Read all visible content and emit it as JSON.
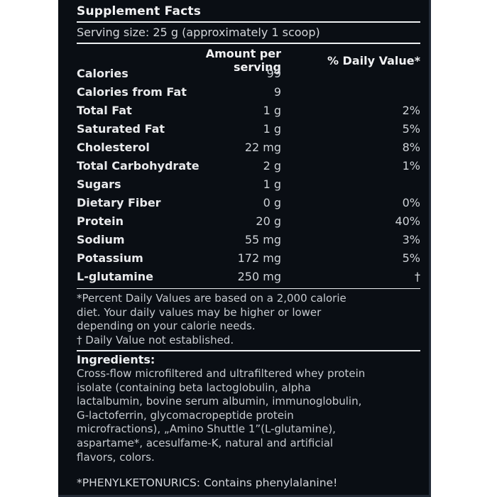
{
  "label": {
    "title": "Supplement Facts",
    "serving_size": "Serving size: 25 g (approximately 1 scoop)",
    "table": {
      "amount_header": "Amount per serving",
      "dv_header": "% Daily Value*",
      "rows": [
        {
          "name": "Calories",
          "amount": "99",
          "dv": ""
        },
        {
          "name": "Calories from Fat",
          "amount": "9",
          "dv": ""
        },
        {
          "name": "Total Fat",
          "amount": "1 g",
          "dv": "2%"
        },
        {
          "name": "Saturated Fat",
          "amount": "1 g",
          "dv": "5%"
        },
        {
          "name": "Cholesterol",
          "amount": "22 mg",
          "dv": "8%"
        },
        {
          "name": "Total Carbohydrate",
          "amount": "2 g",
          "dv": "1%"
        },
        {
          "name": "Sugars",
          "amount": "1 g",
          "dv": ""
        },
        {
          "name": "Dietary Fiber",
          "amount": "0 g",
          "dv": "0%"
        },
        {
          "name": "Protein",
          "amount": "20 g",
          "dv": "40%"
        },
        {
          "name": "Sodium",
          "amount": "55 mg",
          "dv": "3%"
        },
        {
          "name": "Potassium",
          "amount": "172 mg",
          "dv": "5%"
        },
        {
          "name": "L-glutamine",
          "amount": "250 mg",
          "dv": "†"
        }
      ]
    },
    "footnote": "*Percent Daily Values are based on a 2,000 calorie\ndiet. Your daily values may be higher or lower\ndepending on your calorie needs.",
    "dagger_note": "† Daily Value not established.",
    "ingredients_heading": "Ingredients:",
    "ingredients_text": "Cross-flow microfiltered and ultrafiltered whey protein\nisolate (containing beta lactoglobulin, alpha\nlactalbumin, bovine serum albumin, immunoglobulin,\nG-lactoferrin, glycomacropeptide protein\nmicrofractions), „Amino Shuttle 1”(L-glutamine),\naspartame*, acesulfame-K, natural and artificial\nflavors, colors.",
    "pku_warning": "*PHENYLKETONURICS: Contains phenylalanine!",
    "colors": {
      "page_bg": "#ffffff",
      "panel_bg": "#0a0e14",
      "panel_edge": "#242c38",
      "heading_text": "#f2f2f4",
      "body_text": "#c9cdd2",
      "rule": "#edeff1"
    }
  }
}
